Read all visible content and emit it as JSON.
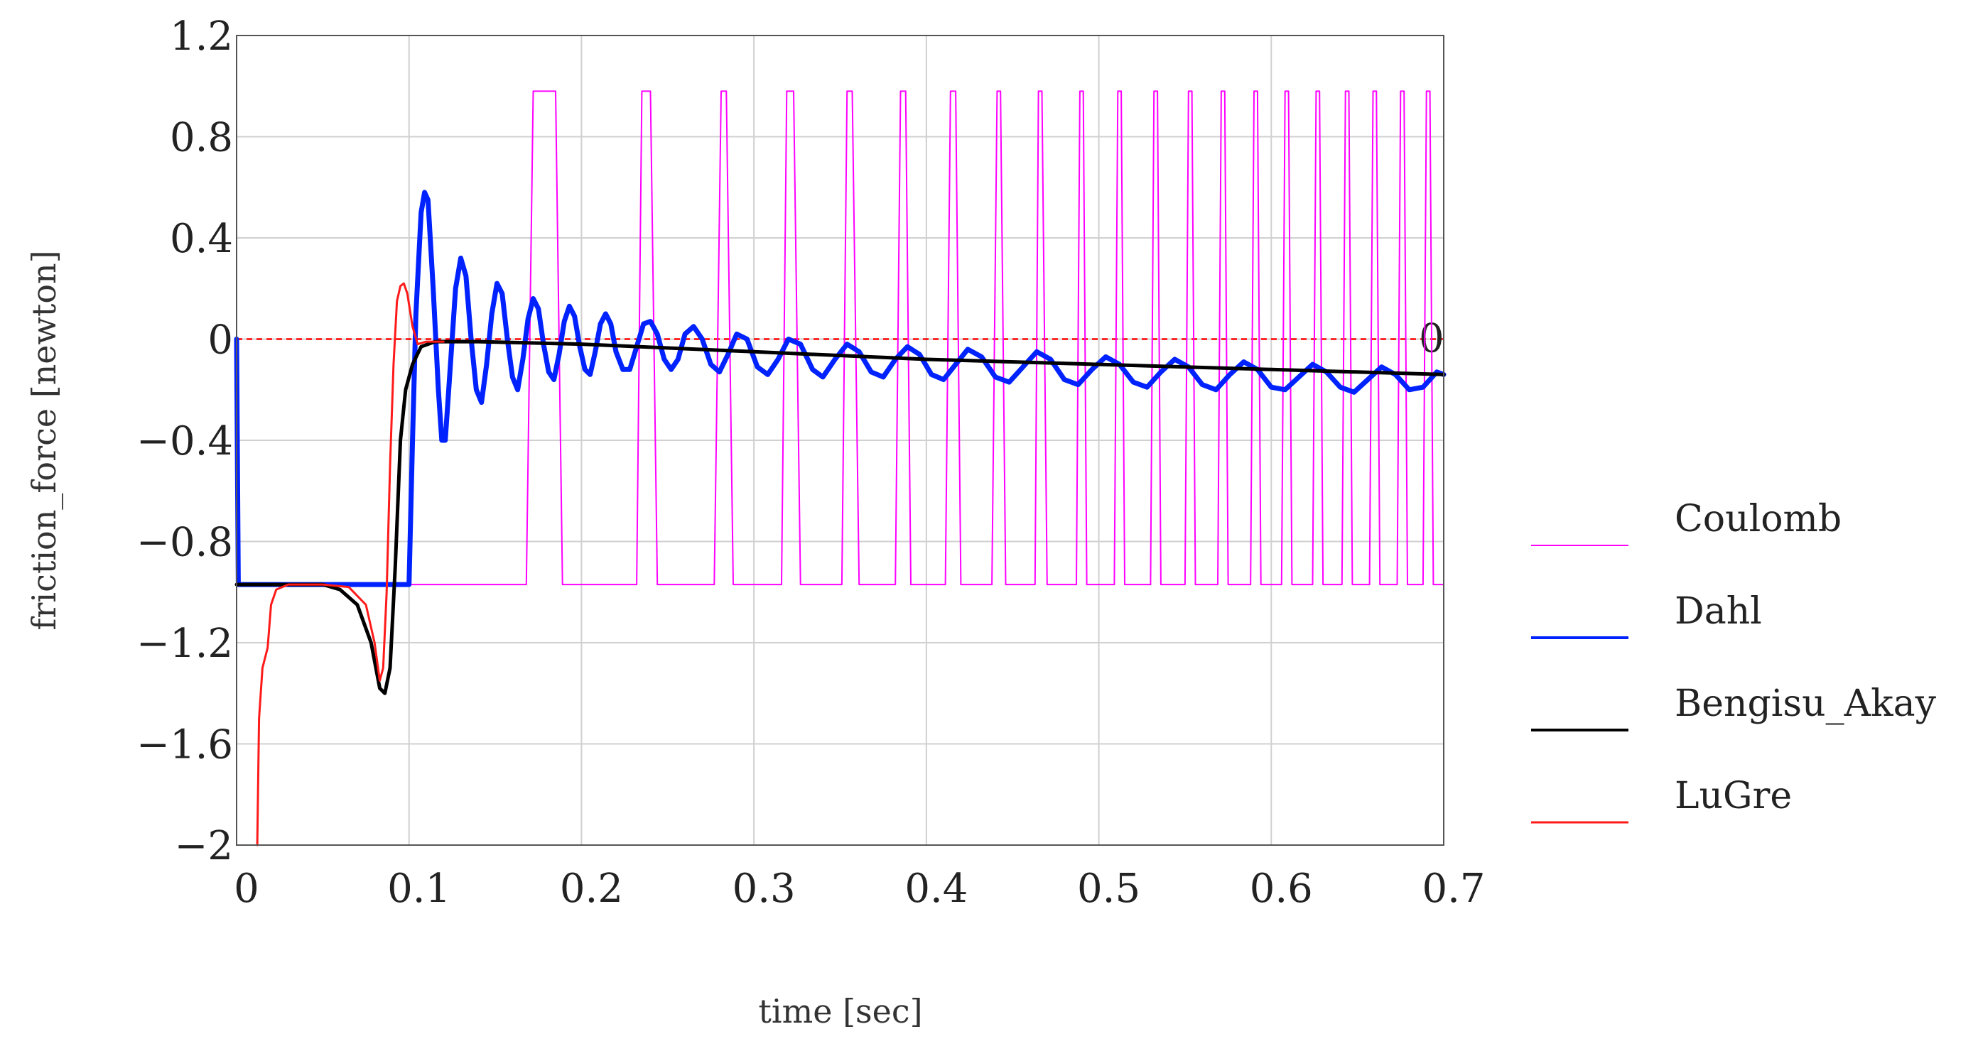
{
  "chart_data": {
    "type": "line",
    "xlabel": "time [sec]",
    "ylabel": "friction_force  [newton]",
    "xlim": [
      0,
      0.7
    ],
    "ylim": [
      -2,
      1.2
    ],
    "xticks": [
      "0",
      "0.1",
      "0.2",
      "0.3",
      "0.4",
      "0.5",
      "0.6",
      "0.7"
    ],
    "yticks": [
      "1.2",
      "0.8",
      "0.4",
      "0",
      "−0.4",
      "−0.8",
      "−1.2",
      "−1.6",
      "−2"
    ],
    "grid": true,
    "legend_position": "right",
    "reference_line": {
      "y": 0,
      "label": "0",
      "color": "#ff0000",
      "style": "dashed"
    },
    "series": [
      {
        "name": "Coulomb",
        "color": "#ff00ff",
        "width": 2,
        "points": [
          [
            0,
            -0.97
          ],
          [
            0.168,
            -0.97
          ],
          [
            0.172,
            0.98
          ],
          [
            0.185,
            0.98
          ],
          [
            0.189,
            -0.97
          ],
          [
            0.232,
            -0.97
          ],
          [
            0.235,
            0.98
          ],
          [
            0.24,
            0.98
          ],
          [
            0.244,
            -0.97
          ],
          [
            0.277,
            -0.97
          ],
          [
            0.281,
            0.98
          ],
          [
            0.284,
            0.98
          ],
          [
            0.288,
            -0.97
          ],
          [
            0.316,
            -0.97
          ],
          [
            0.319,
            0.98
          ],
          [
            0.323,
            0.98
          ],
          [
            0.327,
            -0.97
          ],
          [
            0.351,
            -0.97
          ],
          [
            0.354,
            0.98
          ],
          [
            0.357,
            0.98
          ],
          [
            0.361,
            -0.97
          ],
          [
            0.382,
            -0.97
          ],
          [
            0.385,
            0.98
          ],
          [
            0.388,
            0.98
          ],
          [
            0.391,
            -0.97
          ],
          [
            0.411,
            -0.97
          ],
          [
            0.414,
            0.98
          ],
          [
            0.417,
            0.98
          ],
          [
            0.42,
            -0.97
          ],
          [
            0.438,
            -0.97
          ],
          [
            0.441,
            0.98
          ],
          [
            0.443,
            0.98
          ],
          [
            0.446,
            -0.97
          ],
          [
            0.463,
            -0.97
          ],
          [
            0.465,
            0.98
          ],
          [
            0.467,
            0.98
          ],
          [
            0.47,
            -0.97
          ],
          [
            0.487,
            -0.97
          ],
          [
            0.489,
            0.98
          ],
          [
            0.491,
            0.98
          ],
          [
            0.493,
            -0.97
          ],
          [
            0.509,
            -0.97
          ],
          [
            0.511,
            0.98
          ],
          [
            0.513,
            0.98
          ],
          [
            0.515,
            -0.97
          ],
          [
            0.53,
            -0.97
          ],
          [
            0.532,
            0.98
          ],
          [
            0.534,
            0.98
          ],
          [
            0.536,
            -0.97
          ],
          [
            0.55,
            -0.97
          ],
          [
            0.552,
            0.98
          ],
          [
            0.554,
            0.98
          ],
          [
            0.556,
            -0.97
          ],
          [
            0.569,
            -0.97
          ],
          [
            0.571,
            0.98
          ],
          [
            0.573,
            0.98
          ],
          [
            0.575,
            -0.97
          ],
          [
            0.588,
            -0.97
          ],
          [
            0.59,
            0.98
          ],
          [
            0.592,
            0.98
          ],
          [
            0.594,
            -0.97
          ],
          [
            0.606,
            -0.97
          ],
          [
            0.608,
            0.98
          ],
          [
            0.61,
            0.98
          ],
          [
            0.612,
            -0.97
          ],
          [
            0.624,
            -0.97
          ],
          [
            0.626,
            0.98
          ],
          [
            0.628,
            0.98
          ],
          [
            0.63,
            -0.97
          ],
          [
            0.641,
            -0.97
          ],
          [
            0.643,
            0.98
          ],
          [
            0.645,
            0.98
          ],
          [
            0.647,
            -0.97
          ],
          [
            0.657,
            -0.97
          ],
          [
            0.659,
            0.98
          ],
          [
            0.661,
            0.98
          ],
          [
            0.663,
            -0.97
          ],
          [
            0.673,
            -0.97
          ],
          [
            0.675,
            0.98
          ],
          [
            0.677,
            0.98
          ],
          [
            0.679,
            -0.97
          ],
          [
            0.688,
            -0.97
          ],
          [
            0.69,
            0.98
          ],
          [
            0.692,
            0.98
          ],
          [
            0.694,
            -0.97
          ],
          [
            0.7,
            -0.97
          ]
        ]
      },
      {
        "name": "Dahl",
        "color": "#0022ff",
        "width": 7,
        "points": [
          [
            0,
            0
          ],
          [
            0.001,
            -0.97
          ],
          [
            0.1,
            -0.97
          ],
          [
            0.102,
            -0.4
          ],
          [
            0.104,
            0.1
          ],
          [
            0.107,
            0.5
          ],
          [
            0.109,
            0.58
          ],
          [
            0.111,
            0.55
          ],
          [
            0.114,
            0.2
          ],
          [
            0.117,
            -0.2
          ],
          [
            0.119,
            -0.4
          ],
          [
            0.121,
            -0.4
          ],
          [
            0.124,
            -0.1
          ],
          [
            0.127,
            0.2
          ],
          [
            0.13,
            0.32
          ],
          [
            0.133,
            0.25
          ],
          [
            0.136,
            0.0
          ],
          [
            0.139,
            -0.2
          ],
          [
            0.142,
            -0.25
          ],
          [
            0.145,
            -0.1
          ],
          [
            0.148,
            0.1
          ],
          [
            0.151,
            0.22
          ],
          [
            0.154,
            0.18
          ],
          [
            0.157,
            0.0
          ],
          [
            0.16,
            -0.15
          ],
          [
            0.163,
            -0.2
          ],
          [
            0.166,
            -0.08
          ],
          [
            0.169,
            0.08
          ],
          [
            0.172,
            0.16
          ],
          [
            0.175,
            0.12
          ],
          [
            0.178,
            -0.02
          ],
          [
            0.181,
            -0.13
          ],
          [
            0.184,
            -0.16
          ],
          [
            0.187,
            -0.06
          ],
          [
            0.19,
            0.07
          ],
          [
            0.193,
            0.13
          ],
          [
            0.196,
            0.09
          ],
          [
            0.199,
            -0.03
          ],
          [
            0.202,
            -0.12
          ],
          [
            0.205,
            -0.14
          ],
          [
            0.208,
            -0.05
          ],
          [
            0.211,
            0.06
          ],
          [
            0.214,
            0.1
          ],
          [
            0.217,
            0.06
          ],
          [
            0.22,
            -0.05
          ],
          [
            0.224,
            -0.12
          ],
          [
            0.228,
            -0.12
          ],
          [
            0.232,
            -0.03
          ],
          [
            0.236,
            0.06
          ],
          [
            0.24,
            0.07
          ],
          [
            0.244,
            0.02
          ],
          [
            0.248,
            -0.08
          ],
          [
            0.252,
            -0.12
          ],
          [
            0.256,
            -0.08
          ],
          [
            0.26,
            0.02
          ],
          [
            0.265,
            0.05
          ],
          [
            0.27,
            0.0
          ],
          [
            0.275,
            -0.1
          ],
          [
            0.28,
            -0.13
          ],
          [
            0.285,
            -0.06
          ],
          [
            0.29,
            0.02
          ],
          [
            0.296,
            0.0
          ],
          [
            0.302,
            -0.11
          ],
          [
            0.308,
            -0.14
          ],
          [
            0.314,
            -0.08
          ],
          [
            0.32,
            0.0
          ],
          [
            0.327,
            -0.02
          ],
          [
            0.334,
            -0.12
          ],
          [
            0.34,
            -0.15
          ],
          [
            0.347,
            -0.08
          ],
          [
            0.354,
            -0.02
          ],
          [
            0.361,
            -0.05
          ],
          [
            0.368,
            -0.13
          ],
          [
            0.375,
            -0.15
          ],
          [
            0.382,
            -0.08
          ],
          [
            0.389,
            -0.03
          ],
          [
            0.396,
            -0.06
          ],
          [
            0.403,
            -0.14
          ],
          [
            0.41,
            -0.16
          ],
          [
            0.417,
            -0.1
          ],
          [
            0.424,
            -0.04
          ],
          [
            0.432,
            -0.07
          ],
          [
            0.44,
            -0.15
          ],
          [
            0.448,
            -0.17
          ],
          [
            0.456,
            -0.11
          ],
          [
            0.464,
            -0.05
          ],
          [
            0.472,
            -0.08
          ],
          [
            0.48,
            -0.16
          ],
          [
            0.488,
            -0.18
          ],
          [
            0.496,
            -0.12
          ],
          [
            0.504,
            -0.07
          ],
          [
            0.512,
            -0.1
          ],
          [
            0.52,
            -0.17
          ],
          [
            0.528,
            -0.19
          ],
          [
            0.536,
            -0.13
          ],
          [
            0.544,
            -0.08
          ],
          [
            0.552,
            -0.11
          ],
          [
            0.56,
            -0.18
          ],
          [
            0.568,
            -0.2
          ],
          [
            0.576,
            -0.14
          ],
          [
            0.584,
            -0.09
          ],
          [
            0.592,
            -0.12
          ],
          [
            0.6,
            -0.19
          ],
          [
            0.608,
            -0.2
          ],
          [
            0.616,
            -0.15
          ],
          [
            0.624,
            -0.1
          ],
          [
            0.632,
            -0.13
          ],
          [
            0.64,
            -0.19
          ],
          [
            0.648,
            -0.21
          ],
          [
            0.656,
            -0.16
          ],
          [
            0.664,
            -0.11
          ],
          [
            0.672,
            -0.14
          ],
          [
            0.68,
            -0.2
          ],
          [
            0.688,
            -0.19
          ],
          [
            0.696,
            -0.13
          ],
          [
            0.7,
            -0.14
          ]
        ]
      },
      {
        "name": "Bengisu_Akay",
        "color": "#000000",
        "width": 5,
        "points": [
          [
            0,
            -0.97
          ],
          [
            0.05,
            -0.97
          ],
          [
            0.06,
            -0.99
          ],
          [
            0.07,
            -1.05
          ],
          [
            0.078,
            -1.2
          ],
          [
            0.083,
            -1.38
          ],
          [
            0.086,
            -1.4
          ],
          [
            0.089,
            -1.3
          ],
          [
            0.092,
            -0.9
          ],
          [
            0.095,
            -0.4
          ],
          [
            0.098,
            -0.2
          ],
          [
            0.102,
            -0.1
          ],
          [
            0.107,
            -0.03
          ],
          [
            0.115,
            -0.01
          ],
          [
            0.14,
            -0.01
          ],
          [
            0.2,
            -0.02
          ],
          [
            0.3,
            -0.05
          ],
          [
            0.4,
            -0.08
          ],
          [
            0.5,
            -0.1
          ],
          [
            0.6,
            -0.12
          ],
          [
            0.7,
            -0.14
          ]
        ]
      },
      {
        "name": "LuGre",
        "color": "#ff1a1a",
        "width": 3,
        "points": [
          [
            0.012,
            -2.0
          ],
          [
            0.013,
            -1.5
          ],
          [
            0.015,
            -1.3
          ],
          [
            0.018,
            -1.22
          ],
          [
            0.02,
            -1.05
          ],
          [
            0.023,
            -0.99
          ],
          [
            0.03,
            -0.97
          ],
          [
            0.05,
            -0.97
          ],
          [
            0.065,
            -0.98
          ],
          [
            0.075,
            -1.05
          ],
          [
            0.08,
            -1.2
          ],
          [
            0.083,
            -1.35
          ],
          [
            0.085,
            -1.3
          ],
          [
            0.087,
            -1.0
          ],
          [
            0.089,
            -0.5
          ],
          [
            0.091,
            -0.1
          ],
          [
            0.093,
            0.15
          ],
          [
            0.095,
            0.21
          ],
          [
            0.097,
            0.22
          ],
          [
            0.099,
            0.18
          ],
          [
            0.102,
            0.05
          ],
          [
            0.105,
            -0.02
          ],
          [
            0.11,
            -0.01
          ],
          [
            0.12,
            -0.01
          ]
        ]
      }
    ]
  }
}
